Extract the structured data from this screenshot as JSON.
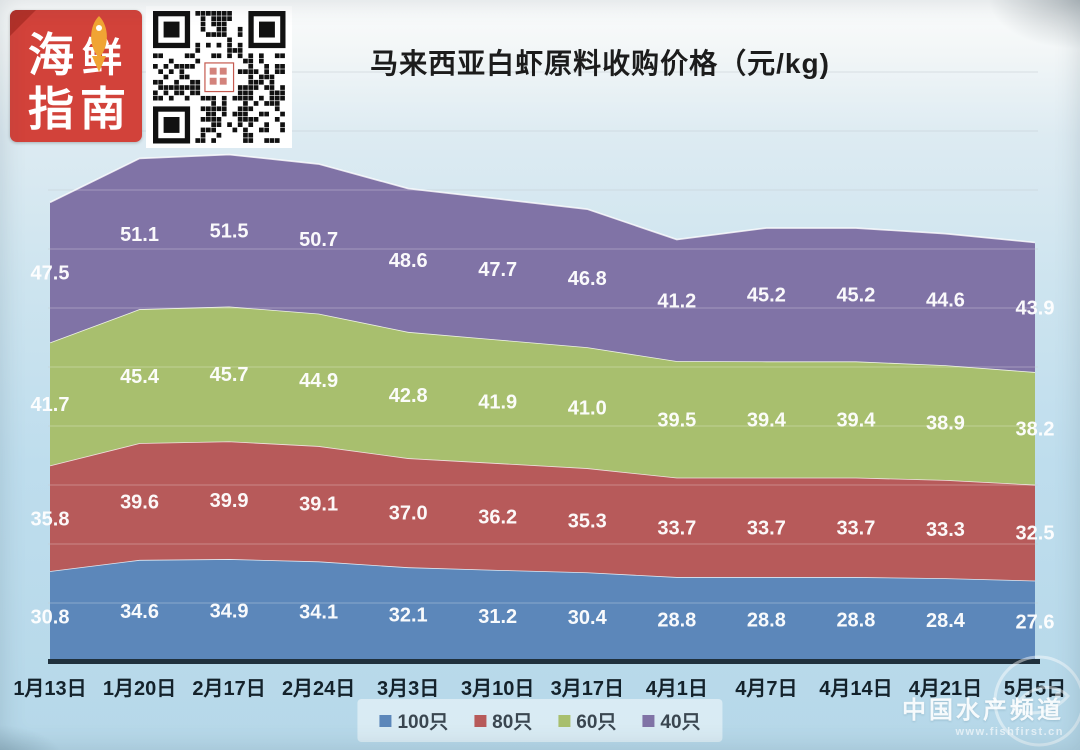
{
  "header": {
    "logo": {
      "chars": [
        "海",
        "鲜",
        "指",
        "南"
      ],
      "bg_color": "#d2423a",
      "fish_color": "#f0a434"
    },
    "qr_label": "wechat-qr-code"
  },
  "chart_data": {
    "type": "area",
    "stacked": true,
    "title": "马来西亚白虾原料收购价格（元/kg)",
    "categories": [
      "1月13日",
      "1月20日",
      "2月17日",
      "2月24日",
      "3月3日",
      "3月10日",
      "3月17日",
      "4月1日",
      "4月7日",
      "4月14日",
      "4月21日",
      "5月5日"
    ],
    "series": [
      {
        "name": "100只",
        "color": "#5c87ba",
        "values": [
          30.8,
          34.6,
          34.9,
          34.1,
          32.1,
          31.2,
          30.4,
          28.8,
          28.8,
          28.8,
          28.4,
          27.6
        ]
      },
      {
        "name": "80只",
        "color": "#b75a5a",
        "values": [
          35.8,
          39.6,
          39.9,
          39.1,
          37.0,
          36.2,
          35.3,
          33.7,
          33.7,
          33.7,
          33.3,
          32.5
        ]
      },
      {
        "name": "60只",
        "color": "#a8bf6e",
        "values": [
          41.7,
          45.4,
          45.7,
          44.9,
          42.8,
          41.9,
          41.0,
          39.5,
          39.4,
          39.4,
          38.9,
          38.2
        ]
      },
      {
        "name": "40只",
        "color": "#8073a6",
        "values": [
          47.5,
          51.1,
          51.5,
          50.7,
          48.6,
          47.7,
          46.8,
          41.2,
          45.2,
          45.2,
          44.6,
          43.9
        ]
      }
    ],
    "ylim": [
      0,
      200
    ],
    "grid": {
      "step": 20,
      "visible": true
    },
    "legend_position": "bottom",
    "axis_color": "#20313d",
    "label_color": "#ffffff",
    "tick_color": "#14222b"
  },
  "watermark": {
    "name": "中国水产频道",
    "url": "www.fishfirst.cn"
  }
}
